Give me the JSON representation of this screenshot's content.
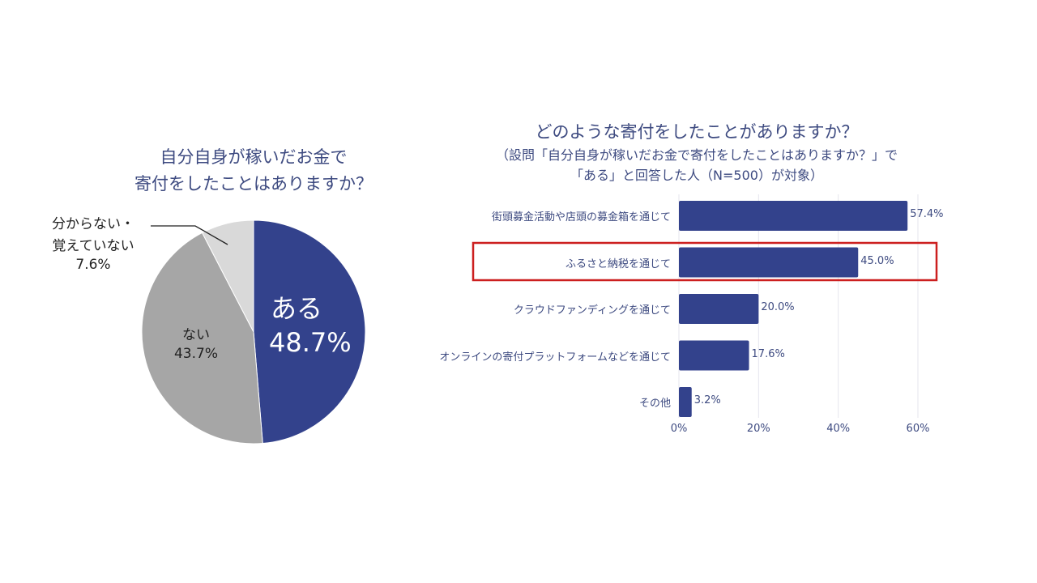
{
  "colors": {
    "primary": "#33428c",
    "gray": "#a6a6a6",
    "light": "#d9d9d9",
    "text": "#3d4a80",
    "highlight": "#cc1f1f",
    "grid": "#e6e6ee"
  },
  "chart_data": [
    {
      "type": "pie",
      "title_lines": [
        "自分自身が稼いだお金で",
        "寄付をしたことはありますか？"
      ],
      "slices": [
        {
          "label": "ある",
          "value": 48.7,
          "value_label": "48.7%"
        },
        {
          "label": "ない",
          "value": 43.7,
          "value_label": "43.7%"
        },
        {
          "label_lines": [
            "分からない・",
            "覚えていない"
          ],
          "value": 7.6,
          "value_label": "7.6%"
        }
      ]
    },
    {
      "type": "bar",
      "orientation": "horizontal",
      "title": "どのような寄付をしたことがありますか？",
      "subtitle_lines": [
        "（設問「自分自身が稼いだお金で寄付をしたことはありますか？」で",
        "「ある」と回答した人（N=500）が対象）"
      ],
      "categories": [
        "街頭募金活動や店頭の募金箱を通じて",
        "ふるさと納税を通じて",
        "クラウドファンディングを通じて",
        "オンラインの寄付プラットフォームなどを通じて",
        "その他"
      ],
      "values": [
        57.4,
        45.0,
        20.0,
        17.6,
        3.2
      ],
      "value_labels": [
        "57.4%",
        "45.0%",
        "20.0%",
        "17.6%",
        "3.2%"
      ],
      "xlim": [
        0,
        60
      ],
      "xticks": [
        0,
        20,
        40,
        60
      ],
      "xtick_labels": [
        "0%",
        "20%",
        "40%",
        "60%"
      ],
      "grid": true,
      "highlighted_category_index": 1
    }
  ]
}
